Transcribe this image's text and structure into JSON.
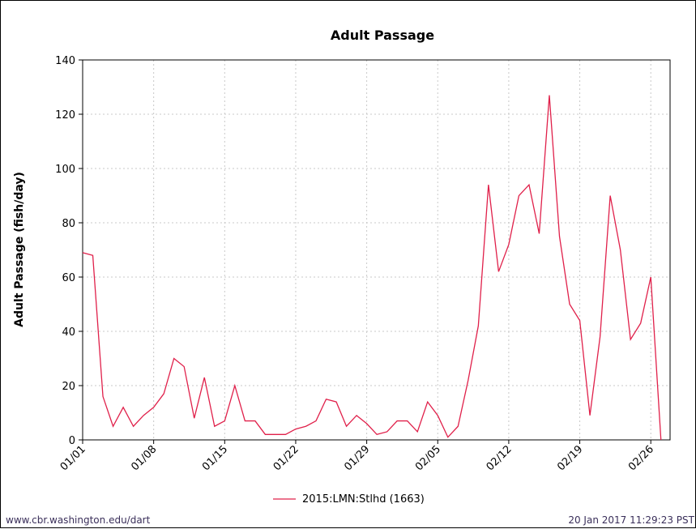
{
  "chart_data": {
    "type": "line",
    "title": "Adult Passage",
    "xlabel": "",
    "ylabel": "Adult Passage (fish/day)",
    "ylim": [
      0,
      140
    ],
    "y_ticks": [
      0,
      20,
      40,
      60,
      80,
      100,
      120,
      140
    ],
    "x_tick_labels": [
      "01/01",
      "01/08",
      "01/15",
      "01/22",
      "01/29",
      "02/05",
      "02/12",
      "02/19",
      "02/26"
    ],
    "grid": true,
    "legend_position": "bottom",
    "series": [
      {
        "name": "2015:LMN:Stlhd (1663)",
        "color": "#e0204a",
        "x": [
          "01/01",
          "01/02",
          "01/03",
          "01/04",
          "01/05",
          "01/06",
          "01/07",
          "01/08",
          "01/09",
          "01/10",
          "01/11",
          "01/12",
          "01/13",
          "01/14",
          "01/15",
          "01/16",
          "01/17",
          "01/18",
          "01/19",
          "01/20",
          "01/21",
          "01/22",
          "01/23",
          "01/24",
          "01/25",
          "01/26",
          "01/27",
          "01/28",
          "01/29",
          "01/30",
          "01/31",
          "02/01",
          "02/02",
          "02/03",
          "02/04",
          "02/05",
          "02/06",
          "02/07",
          "02/08",
          "02/09",
          "02/10",
          "02/11",
          "02/12",
          "02/13",
          "02/14",
          "02/15",
          "02/16",
          "02/17",
          "02/18",
          "02/19",
          "02/20",
          "02/21",
          "02/22",
          "02/23",
          "02/24",
          "02/25",
          "02/26",
          "02/27"
        ],
        "values": [
          69,
          68,
          16,
          5,
          12,
          5,
          9,
          12,
          17,
          30,
          27,
          8,
          23,
          5,
          7,
          20,
          7,
          7,
          2,
          2,
          2,
          4,
          5,
          7,
          15,
          14,
          5,
          9,
          6,
          2,
          3,
          7,
          7,
          3,
          14,
          9,
          1,
          5,
          22,
          42,
          94,
          62,
          72,
          90,
          94,
          76,
          127,
          75,
          50,
          44,
          9,
          38,
          90,
          70,
          37,
          43,
          60,
          0
        ]
      }
    ]
  },
  "footer": {
    "left": "www.cbr.washington.edu/dart",
    "right": "20 Jan 2017 11:29:23 PST"
  }
}
